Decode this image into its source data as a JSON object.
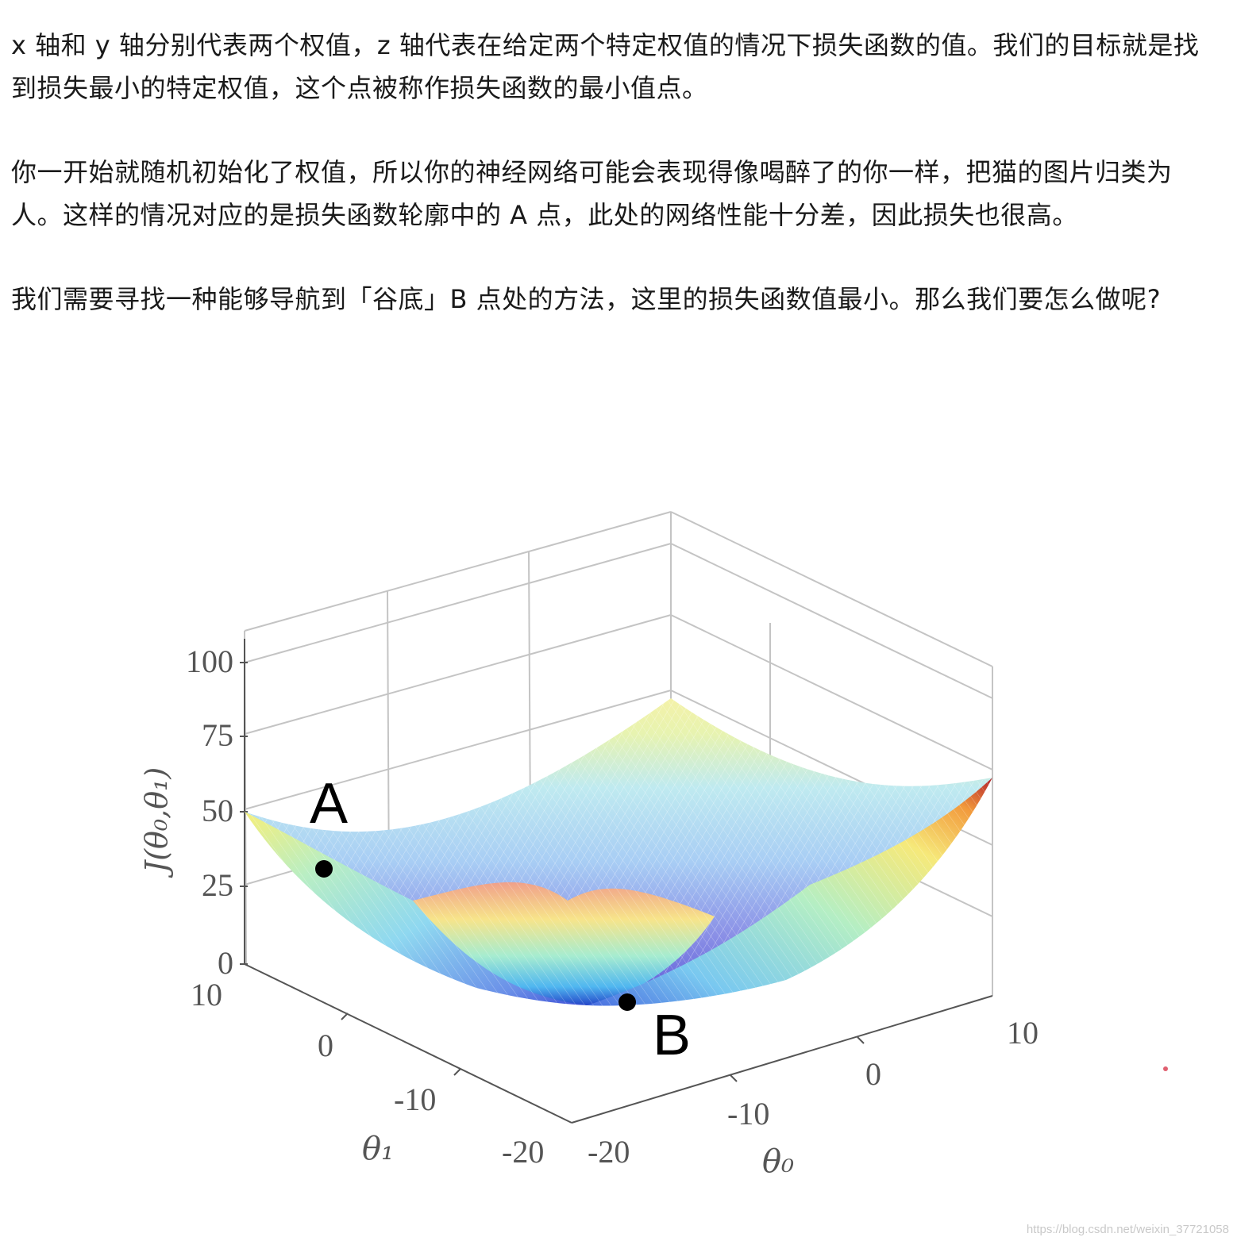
{
  "article": {
    "paragraphs": [
      "x 轴和 y 轴分别代表两个权值，z 轴代表在给定两个特定权值的情况下损失函数的值。我们的目标就是找到损失最小的特定权值，这个点被称作损失函数的最小值点。",
      "你一开始就随机初始化了权值，所以你的神经网络可能会表现得像喝醉了的你一样，把猫的图片归类为人。这样的情况对应的是损失函数轮廓中的 A 点，此处的网络性能十分差，因此损失也很高。",
      "我们需要寻找一种能够导航到「谷底」B 点处的方法，这里的损失函数值最小。那么我们要怎么做呢?"
    ]
  },
  "figure": {
    "z_axis_label": "J(θ₀,θ₁)",
    "z_ticks": [
      "100",
      "75",
      "50",
      "25",
      "0"
    ],
    "theta1_label": "θ₁",
    "theta1_ticks": [
      "10",
      "0",
      "-10",
      "-20"
    ],
    "theta0_label": "θ₀",
    "theta0_ticks": [
      "-20",
      "-10",
      "0",
      "10"
    ],
    "point_a_label": "A",
    "point_b_label": "B",
    "watermark": "https://blog.csdn.net/weixin_37721058"
  },
  "chart_data": {
    "type": "surface",
    "title": "",
    "xlabel": "θ₀",
    "ylabel": "θ₁",
    "zlabel": "J(θ₀,θ₁)",
    "xlim": [
      -20,
      10
    ],
    "ylim": [
      -20,
      10
    ],
    "zlim": [
      0,
      100
    ],
    "points": [
      {
        "label": "A",
        "approx_J": 32
      },
      {
        "label": "B",
        "approx_J": 0
      }
    ],
    "colormap": "jet"
  }
}
